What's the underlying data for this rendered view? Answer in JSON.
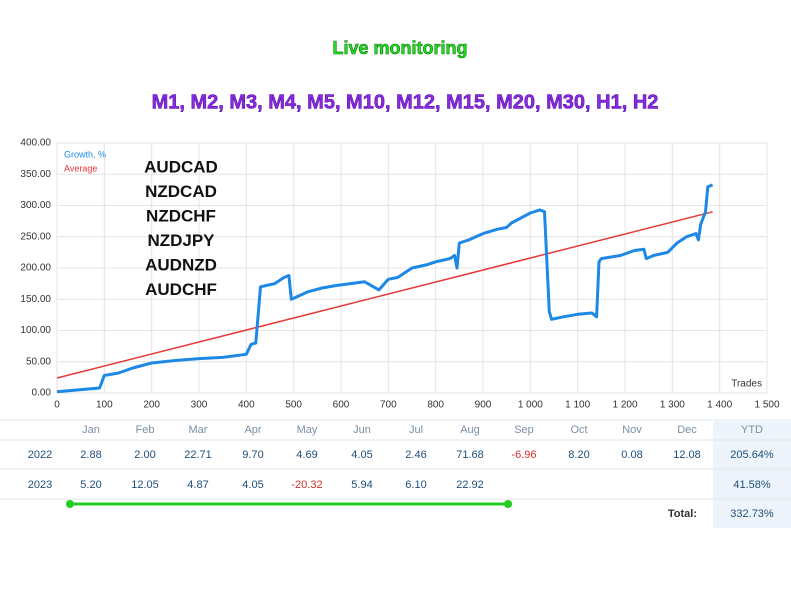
{
  "header": {
    "title": "Live monitoring",
    "subtitle": "M1, M2, M3, M4, M5, M10, M12, M15, M20, M30, H1, H2"
  },
  "chart_data": {
    "type": "line",
    "x_label": "Trades",
    "xlim": [
      0,
      1500
    ],
    "xticks": [
      0,
      100,
      200,
      300,
      400,
      500,
      600,
      700,
      800,
      900,
      {
        "value": 1000,
        "label": "1 000"
      },
      {
        "value": 1100,
        "label": "1 100"
      },
      {
        "value": 1200,
        "label": "1 200"
      },
      {
        "value": 1300,
        "label": "1 300"
      },
      {
        "value": 1400,
        "label": "1 400"
      },
      {
        "value": 1500,
        "label": "1 500"
      }
    ],
    "ylim": [
      0,
      400
    ],
    "yticks": [
      {
        "value": 0,
        "label": "0.00"
      },
      {
        "value": 50,
        "label": "50.00"
      },
      {
        "value": 100,
        "label": "100.00"
      },
      {
        "value": 150,
        "label": "150.00"
      },
      {
        "value": 200,
        "label": "200.00"
      },
      {
        "value": 250,
        "label": "250.00"
      },
      {
        "value": 300,
        "label": "300.00"
      },
      {
        "value": 350,
        "label": "350.00"
      },
      {
        "value": 400,
        "label": "400.00"
      }
    ],
    "grid": true,
    "annotations": [
      "AUDCAD",
      "NZDCAD",
      "NZDCHF",
      "NZDJPY",
      "AUDNZD",
      "AUDCHF"
    ],
    "series": [
      {
        "name": "Growth, %",
        "color": "#1e88e5",
        "x": [
          0,
          90,
          100,
          130,
          160,
          200,
          250,
          300,
          350,
          400,
          410,
          420,
          430,
          460,
          480,
          490,
          495,
          510,
          530,
          560,
          590,
          620,
          650,
          680,
          700,
          720,
          750,
          780,
          800,
          830,
          840,
          845,
          850,
          870,
          900,
          930,
          950,
          960,
          980,
          1000,
          1020,
          1030,
          1040,
          1045,
          1070,
          1100,
          1130,
          1140,
          1145,
          1150,
          1190,
          1220,
          1240,
          1245,
          1260,
          1290,
          1310,
          1330,
          1350,
          1355,
          1360,
          1365,
          1370,
          1375,
          1385
        ],
        "values": [
          2,
          8,
          28,
          32,
          40,
          48,
          52,
          55,
          57,
          62,
          78,
          80,
          170,
          175,
          185,
          188,
          150,
          155,
          162,
          168,
          172,
          175,
          178,
          165,
          182,
          185,
          200,
          205,
          210,
          215,
          220,
          200,
          240,
          245,
          255,
          262,
          265,
          272,
          280,
          288,
          293,
          290,
          130,
          118,
          122,
          126,
          128,
          122,
          210,
          215,
          220,
          228,
          230,
          215,
          220,
          225,
          240,
          250,
          255,
          245,
          270,
          280,
          290,
          330,
          333
        ]
      },
      {
        "name": "Average",
        "color": "#e53935",
        "x": [
          0,
          1385
        ],
        "values": [
          24,
          290
        ]
      }
    ]
  },
  "table": {
    "columns": [
      "Jan",
      "Feb",
      "Mar",
      "Apr",
      "May",
      "Jun",
      "Jul",
      "Aug",
      "Sep",
      "Oct",
      "Nov",
      "Dec",
      "YTD"
    ],
    "rows": [
      {
        "year": "2022",
        "cells": [
          "2.88",
          "2.00",
          "22.71",
          "9.70",
          "4.69",
          "4.05",
          "2.46",
          "71.68",
          "-6.96",
          "8.20",
          "0.08",
          "12.08",
          "205.64%"
        ]
      },
      {
        "year": "2023",
        "cells": [
          "5.20",
          "12.05",
          "4.87",
          "4.05",
          "-20.32",
          "5.94",
          "6.10",
          "22.92",
          "",
          "",
          "",
          "",
          "41.58%"
        ]
      }
    ],
    "total_label": "Total:",
    "total": "332.73%"
  }
}
